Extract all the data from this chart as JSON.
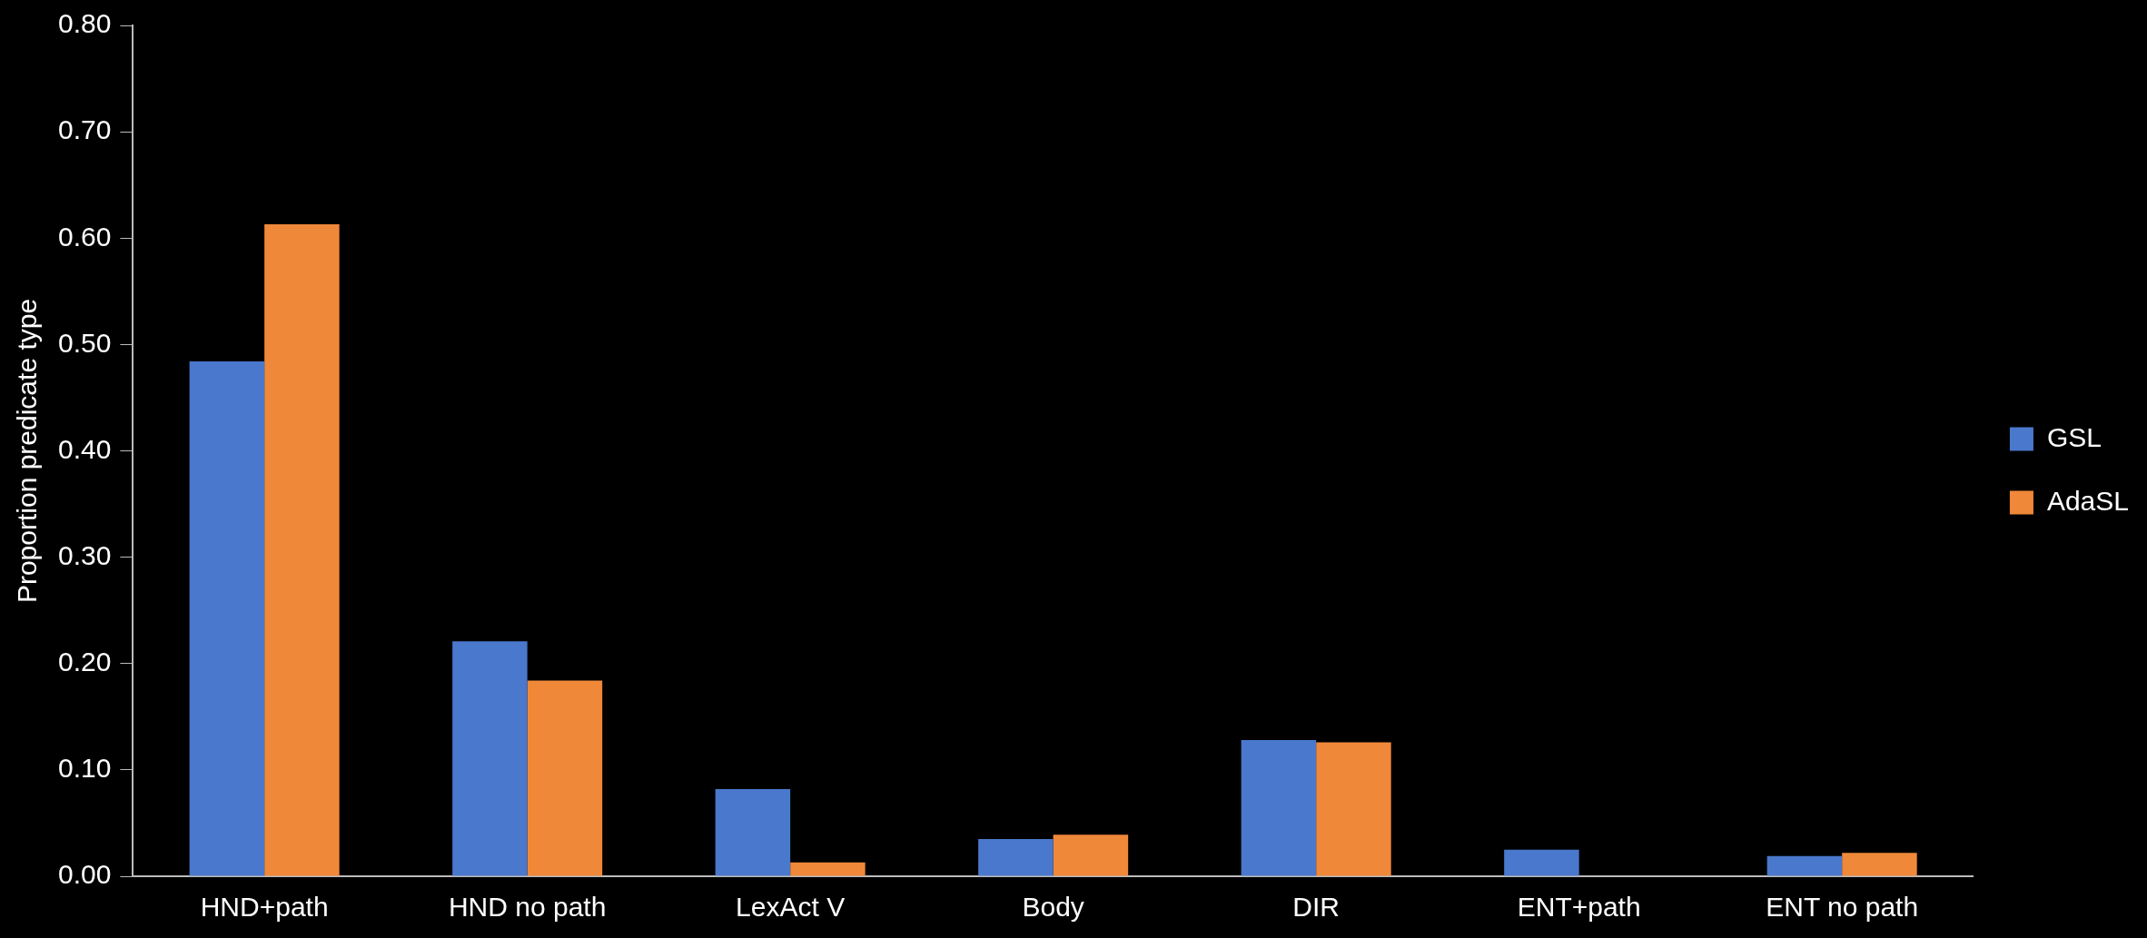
{
  "chart_data": {
    "type": "bar",
    "ylabel": "Proportion predicate type",
    "categories": [
      "HND+path",
      "HND no path",
      "LexAct V",
      "Body",
      "DIR",
      "ENT+path",
      "ENT no path"
    ],
    "series": [
      {
        "name": "GSL",
        "color": "#4a78cc",
        "values": [
          0.484,
          0.221,
          0.082,
          0.035,
          0.128,
          0.025,
          0.019
        ]
      },
      {
        "name": "AdaSL",
        "color": "#f0883a",
        "values": [
          0.613,
          0.184,
          0.013,
          0.039,
          0.126,
          0,
          0.022
        ]
      }
    ],
    "ylim": [
      0,
      0.8
    ],
    "yticks": [
      {
        "value": 0,
        "label": "0.00"
      },
      {
        "value": 0.1,
        "label": "0.10"
      },
      {
        "value": 0.2,
        "label": "0.20"
      },
      {
        "value": 0.3,
        "label": "0.30"
      },
      {
        "value": 0.4,
        "label": "0.40"
      },
      {
        "value": 0.5,
        "label": "0.50"
      },
      {
        "value": 0.6,
        "label": "0.60"
      },
      {
        "value": 0.7,
        "label": "0.70"
      },
      {
        "value": 0.8,
        "label": "0.80"
      }
    ],
    "grid": false,
    "legend": "right"
  }
}
